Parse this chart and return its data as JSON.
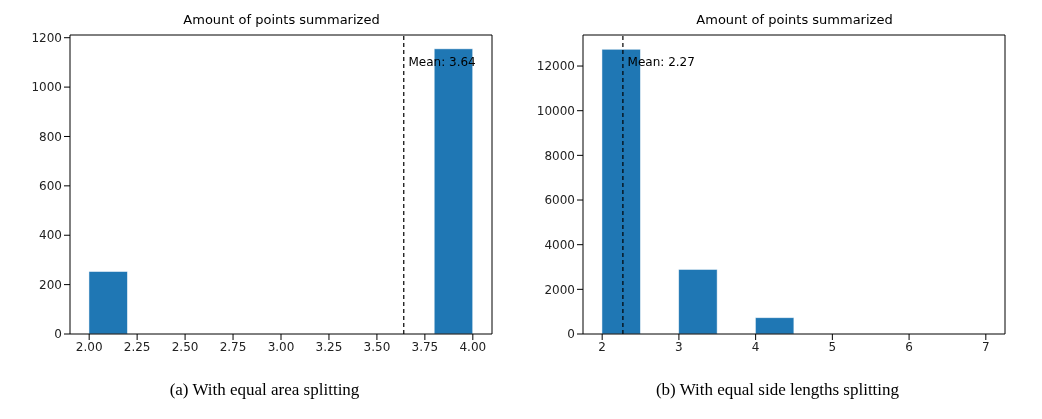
{
  "chart_data": [
    {
      "type": "histogram",
      "title": "Amount of points summarized",
      "bins": [
        2.0,
        2.2,
        2.4,
        2.6,
        2.8,
        3.0,
        3.2,
        3.4,
        3.6,
        3.8,
        4.0
      ],
      "values": [
        253,
        0,
        0,
        0,
        0,
        0,
        0,
        0,
        0,
        1155
      ],
      "color": "#1f77b4",
      "xlim": [
        1.9,
        4.1
      ],
      "xticks": [
        {
          "value": 2,
          "label": "2.00"
        },
        {
          "value": 2.25,
          "label": "2.25"
        },
        {
          "value": 2.5,
          "label": "2.50"
        },
        {
          "value": 2.75,
          "label": "2.75"
        },
        {
          "value": 3,
          "label": "3.00"
        },
        {
          "value": 3.25,
          "label": "3.25"
        },
        {
          "value": 3.5,
          "label": "3.50"
        },
        {
          "value": 3.75,
          "label": "3.75"
        },
        {
          "value": 4,
          "label": "4.00"
        }
      ],
      "ylim": [
        0,
        1211
      ],
      "yticks": [
        0,
        200,
        400,
        600,
        800,
        1000,
        1200
      ],
      "ref_lines": [
        {
          "axis": "x",
          "value": 3.64,
          "label": "Mean: 3.64",
          "color": "#000000",
          "line_style": "dashed"
        }
      ],
      "annotations": [
        "(a) With equal area splitting"
      ]
    },
    {
      "type": "histogram",
      "title": "Amount of points summarized",
      "bins": [
        2.0,
        2.5,
        3.0,
        3.5,
        4.0,
        4.5,
        5.0,
        5.5,
        6.0,
        6.5,
        7.0
      ],
      "values": [
        12750,
        0,
        2890,
        0,
        730,
        0,
        0,
        0,
        0,
        0
      ],
      "color": "#1f77b4",
      "xlim": [
        1.75,
        7.25
      ],
      "xticks": [
        2,
        3,
        4,
        5,
        6,
        7
      ],
      "ylim": [
        0,
        13390
      ],
      "yticks": [
        0,
        2000,
        4000,
        6000,
        8000,
        10000,
        12000
      ],
      "ref_lines": [
        {
          "axis": "x",
          "value": 2.27,
          "label": "Mean: 2.27",
          "color": "#000000",
          "line_style": "dashed"
        }
      ],
      "annotations": [
        "(b) With equal side lengths splitting"
      ]
    }
  ]
}
